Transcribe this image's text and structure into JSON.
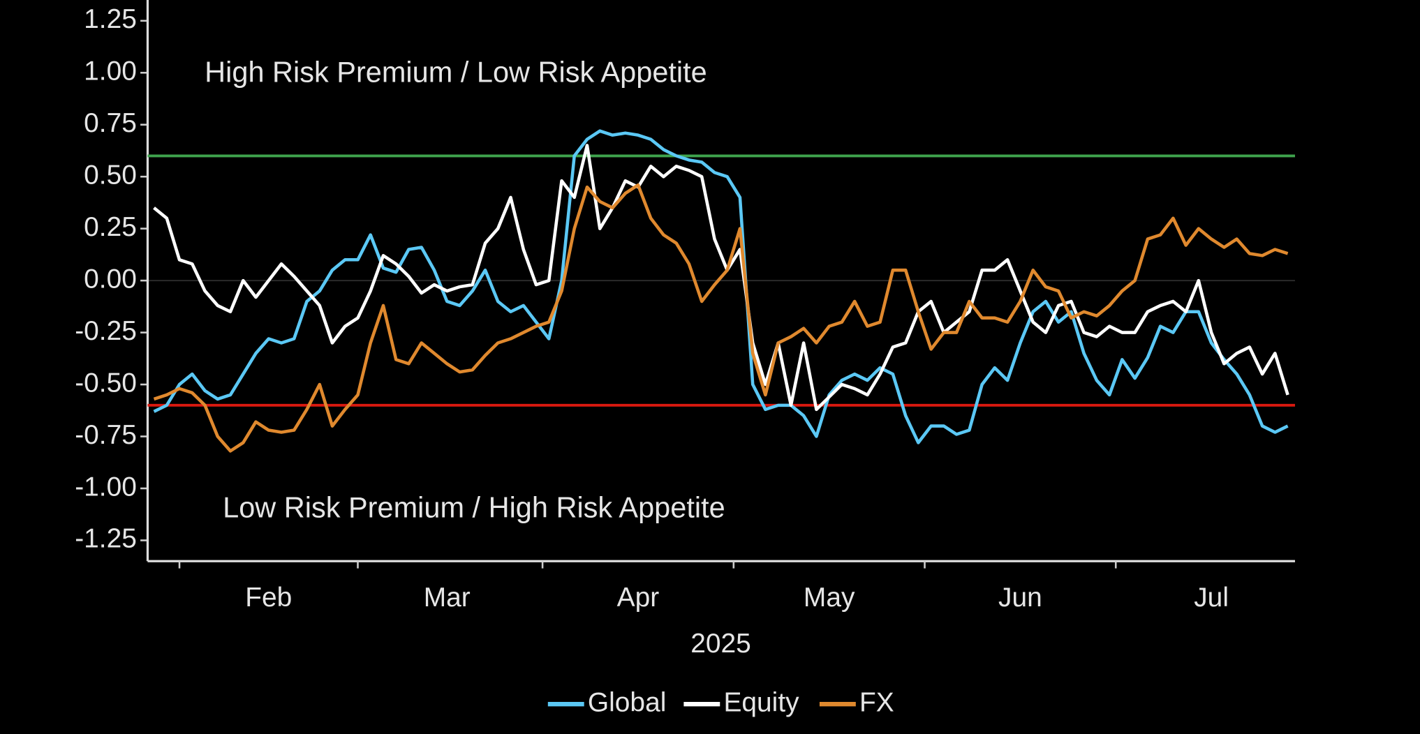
{
  "chart_data": {
    "type": "line",
    "annotations": [
      "High Risk Premium / Low Risk Appetite",
      "Low Risk Premium / High Risk Appetite"
    ],
    "x_label": "2025",
    "categories": [
      null,
      null,
      null,
      null,
      null,
      null,
      null,
      null,
      null,
      "Feb",
      null,
      null,
      null,
      null,
      null,
      null,
      null,
      null,
      null,
      null,
      null,
      null,
      null,
      "Mar",
      null,
      null,
      null,
      null,
      null,
      null,
      null,
      null,
      null,
      null,
      null,
      null,
      null,
      null,
      "Apr",
      null,
      null,
      null,
      null,
      null,
      null,
      null,
      null,
      null,
      null,
      null,
      null,
      null,
      null,
      "May",
      null,
      null,
      null,
      null,
      null,
      null,
      null,
      null,
      null,
      null,
      null,
      null,
      null,
      null,
      "Jun",
      null,
      null,
      null,
      null,
      null,
      null,
      null,
      null,
      null,
      null,
      null,
      null,
      null,
      null,
      "Jul",
      null,
      null,
      null,
      null,
      null,
      null
    ],
    "series": [
      {
        "name": "Global",
        "color": "#5bc8f5",
        "values": [
          -0.63,
          -0.6,
          -0.5,
          -0.45,
          -0.53,
          -0.57,
          -0.55,
          -0.45,
          -0.35,
          -0.28,
          -0.3,
          -0.28,
          -0.1,
          -0.05,
          0.05,
          0.1,
          0.1,
          0.22,
          0.06,
          0.04,
          0.15,
          0.16,
          0.05,
          -0.1,
          -0.12,
          -0.05,
          0.05,
          -0.1,
          -0.15,
          -0.12,
          -0.2,
          -0.28,
          0.0,
          0.6,
          0.68,
          0.72,
          0.7,
          0.71,
          0.7,
          0.68,
          0.63,
          0.6,
          0.58,
          0.57,
          0.52,
          0.5,
          0.4,
          -0.5,
          -0.62,
          -0.6,
          -0.6,
          -0.65,
          -0.75,
          -0.55,
          -0.48,
          -0.45,
          -0.48,
          -0.42,
          -0.45,
          -0.65,
          -0.78,
          -0.7,
          -0.7,
          -0.74,
          -0.72,
          -0.5,
          -0.42,
          -0.48,
          -0.3,
          -0.15,
          -0.1,
          -0.2,
          -0.15,
          -0.35,
          -0.48,
          -0.55,
          -0.38,
          -0.47,
          -0.37,
          -0.22,
          -0.25,
          -0.15,
          -0.15,
          -0.3,
          -0.38,
          -0.45,
          -0.55,
          -0.7,
          -0.73,
          -0.7
        ]
      },
      {
        "name": "Equity",
        "color": "#ffffff",
        "values": [
          0.35,
          0.3,
          0.1,
          0.08,
          -0.05,
          -0.12,
          -0.15,
          0.0,
          -0.08,
          0.0,
          0.08,
          0.02,
          -0.05,
          -0.12,
          -0.3,
          -0.22,
          -0.18,
          -0.05,
          0.12,
          0.08,
          0.02,
          -0.06,
          -0.02,
          -0.05,
          -0.03,
          -0.02,
          0.18,
          0.25,
          0.4,
          0.15,
          -0.02,
          0.0,
          0.48,
          0.4,
          0.65,
          0.25,
          0.35,
          0.48,
          0.45,
          0.55,
          0.5,
          0.55,
          0.53,
          0.5,
          0.2,
          0.05,
          0.15,
          -0.3,
          -0.5,
          -0.3,
          -0.6,
          -0.3,
          -0.62,
          -0.56,
          -0.5,
          -0.52,
          -0.55,
          -0.45,
          -0.32,
          -0.3,
          -0.15,
          -0.1,
          -0.25,
          -0.2,
          -0.15,
          0.05,
          0.05,
          0.1,
          -0.05,
          -0.2,
          -0.25,
          -0.12,
          -0.1,
          -0.25,
          -0.27,
          -0.22,
          -0.25,
          -0.25,
          -0.15,
          -0.12,
          -0.1,
          -0.15,
          0.0,
          -0.25,
          -0.4,
          -0.35,
          -0.32,
          -0.45,
          -0.35,
          -0.55
        ]
      },
      {
        "name": "FX",
        "color": "#e0892e",
        "values": [
          -0.57,
          -0.55,
          -0.52,
          -0.54,
          -0.6,
          -0.75,
          -0.82,
          -0.78,
          -0.68,
          -0.72,
          -0.73,
          -0.72,
          -0.62,
          -0.5,
          -0.7,
          -0.62,
          -0.55,
          -0.3,
          -0.12,
          -0.38,
          -0.4,
          -0.3,
          -0.35,
          -0.4,
          -0.44,
          -0.43,
          -0.36,
          -0.3,
          -0.28,
          -0.25,
          -0.22,
          -0.2,
          -0.05,
          0.25,
          0.45,
          0.38,
          0.35,
          0.42,
          0.46,
          0.3,
          0.22,
          0.18,
          0.08,
          -0.1,
          -0.02,
          0.05,
          0.25,
          -0.35,
          -0.55,
          -0.3,
          -0.27,
          -0.23,
          -0.3,
          -0.22,
          -0.2,
          -0.1,
          -0.22,
          -0.2,
          0.05,
          0.05,
          -0.15,
          -0.33,
          -0.25,
          -0.25,
          -0.1,
          -0.18,
          -0.18,
          -0.2,
          -0.1,
          0.05,
          -0.03,
          -0.05,
          -0.18,
          -0.15,
          -0.17,
          -0.12,
          -0.05,
          0.0,
          0.2,
          0.22,
          0.3,
          0.17,
          0.25,
          0.2,
          0.16,
          0.2,
          0.13,
          0.12,
          0.15,
          0.13
        ]
      }
    ],
    "hlines": [
      {
        "value": 0.6,
        "color": "#3fa34d"
      },
      {
        "value": -0.6,
        "color": "#d9190f"
      }
    ],
    "ylim": [
      -1.35,
      1.35
    ],
    "yticks": [
      1.25,
      {
        "value": 1,
        "label": "1.00"
      },
      0.75,
      {
        "value": 0.5,
        "label": "0.50"
      },
      0.25,
      {
        "value": 0,
        "label": "0.00"
      },
      -0.25,
      {
        "value": -0.5,
        "label": "-0.50"
      },
      -0.75,
      {
        "value": -1,
        "label": "-1.00"
      },
      -1.25
    ],
    "zero_line": true,
    "grid": false,
    "legend": "bottom"
  }
}
